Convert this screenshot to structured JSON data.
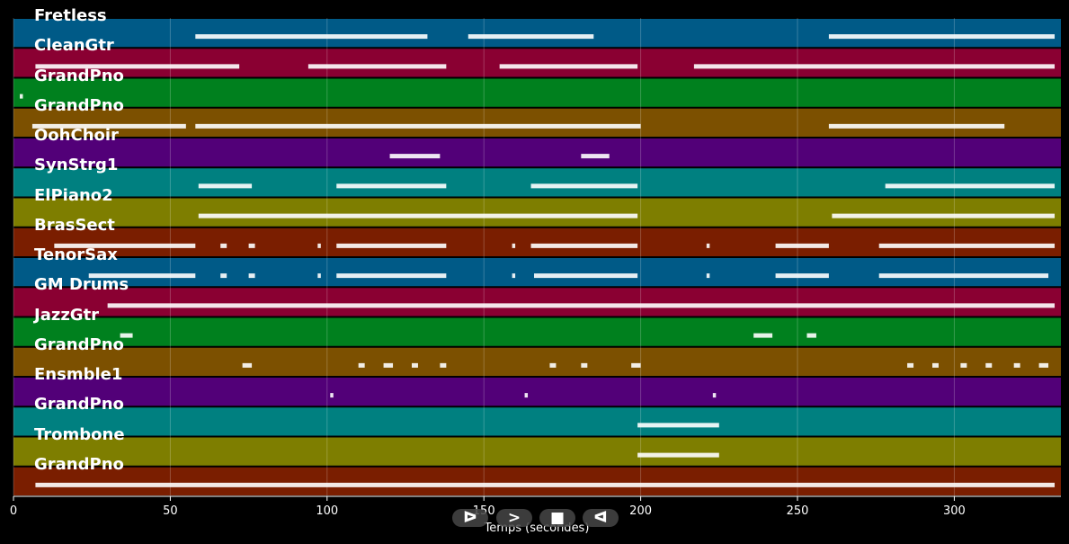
{
  "chart_data": {
    "type": "heatmap",
    "xlabel": "Temps (secondes)",
    "xlim": [
      0,
      334
    ],
    "xticks": [
      "0",
      "50",
      "100",
      "150",
      "200",
      "250",
      "300"
    ],
    "grid": true,
    "tracks": [
      {
        "name": "Fretless",
        "color": "#005a87",
        "segments": [
          [
            58,
            132
          ],
          [
            145,
            185
          ],
          [
            260,
            332
          ]
        ]
      },
      {
        "name": "CleanGtr",
        "color": "#8a0032",
        "segments": [
          [
            7,
            72
          ],
          [
            94,
            138
          ],
          [
            155,
            199
          ],
          [
            217,
            332
          ]
        ]
      },
      {
        "name": "GrandPno",
        "color": "#00801e",
        "segments": [
          [
            2,
            3
          ]
        ]
      },
      {
        "name": "GrandPno",
        "color": "#7c5000",
        "segments": [
          [
            6,
            55
          ],
          [
            58,
            200
          ],
          [
            260,
            316
          ]
        ]
      },
      {
        "name": "OohChoir",
        "color": "#520078",
        "segments": [
          [
            120,
            136
          ],
          [
            181,
            190
          ]
        ]
      },
      {
        "name": "SynStrg1",
        "color": "#008080",
        "segments": [
          [
            59,
            76
          ],
          [
            103,
            138
          ],
          [
            165,
            199
          ],
          [
            278,
            332
          ]
        ]
      },
      {
        "name": "ElPiano2",
        "color": "#7e7e00",
        "segments": [
          [
            59,
            199
          ],
          [
            261,
            332
          ]
        ]
      },
      {
        "name": "BrasSect",
        "color": "#7a1e00",
        "segments": [
          [
            13,
            58
          ],
          [
            66,
            68
          ],
          [
            75,
            77
          ],
          [
            97,
            98
          ],
          [
            103,
            138
          ],
          [
            159,
            160
          ],
          [
            165,
            199
          ],
          [
            221,
            222
          ],
          [
            243,
            260
          ],
          [
            276,
            332
          ]
        ]
      },
      {
        "name": "TenorSax",
        "color": "#005a87",
        "segments": [
          [
            24,
            58
          ],
          [
            66,
            68
          ],
          [
            75,
            77
          ],
          [
            97,
            98
          ],
          [
            103,
            138
          ],
          [
            159,
            160
          ],
          [
            166,
            199
          ],
          [
            221,
            222
          ],
          [
            243,
            260
          ],
          [
            276,
            330
          ]
        ]
      },
      {
        "name": "GM Drums",
        "color": "#8a0032",
        "segments": [
          [
            30,
            332
          ]
        ]
      },
      {
        "name": "JazzGtr",
        "color": "#00801e",
        "segments": [
          [
            34,
            38
          ],
          [
            236,
            242
          ],
          [
            253,
            256
          ]
        ]
      },
      {
        "name": "GrandPno",
        "color": "#7c5000",
        "segments": [
          [
            73,
            76
          ],
          [
            110,
            112
          ],
          [
            118,
            121
          ],
          [
            127,
            129
          ],
          [
            136,
            138
          ],
          [
            171,
            173
          ],
          [
            181,
            183
          ],
          [
            197,
            200
          ],
          [
            285,
            287
          ],
          [
            293,
            295
          ],
          [
            302,
            304
          ],
          [
            310,
            312
          ],
          [
            319,
            321
          ],
          [
            327,
            330
          ]
        ]
      },
      {
        "name": "Ensmble1",
        "color": "#520078",
        "segments": [
          [
            101,
            102
          ],
          [
            163,
            164
          ],
          [
            223,
            224
          ]
        ]
      },
      {
        "name": "GrandPno",
        "color": "#008080",
        "segments": [
          [
            199,
            225
          ]
        ]
      },
      {
        "name": "Trombone",
        "color": "#7e7e00",
        "segments": [
          [
            199,
            225
          ]
        ]
      },
      {
        "name": "GrandPno",
        "color": "#7a1e00",
        "segments": [
          [
            7,
            332
          ]
        ]
      }
    ]
  },
  "controls": {
    "play": "ᐅ",
    "forward": ">",
    "stop": "■",
    "back": "ᐊ"
  }
}
